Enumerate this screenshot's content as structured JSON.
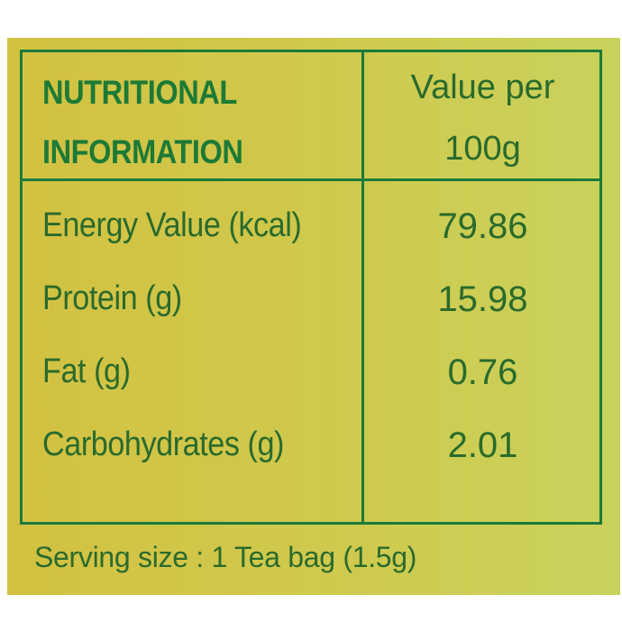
{
  "table": {
    "header": [
      "NUTRITIONAL INFORMATION",
      "Value per 100g"
    ],
    "header_lines": [
      [
        "NUTRITIONAL",
        "INFORMATION"
      ],
      [
        "Value per",
        "100g"
      ]
    ],
    "rows": [
      [
        "Energy Value (kcal)",
        "79.86"
      ],
      [
        "Protein (g)",
        "15.98"
      ],
      [
        "Fat (g)",
        "0.76"
      ],
      [
        "Carbohydrates (g)",
        "2.01"
      ]
    ]
  },
  "footer": "Serving size : 1 Tea bag (1.5g)"
}
